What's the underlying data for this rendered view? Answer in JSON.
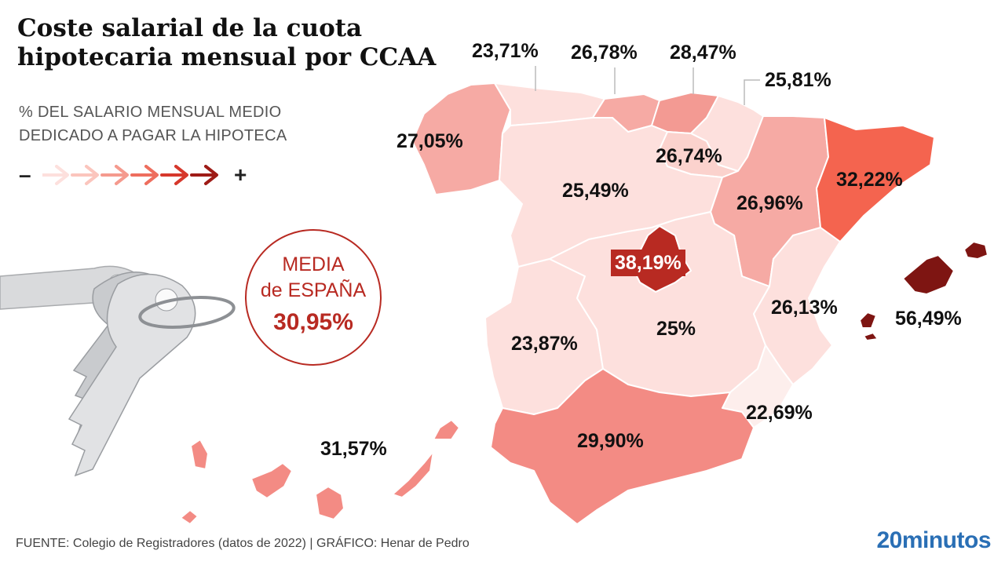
{
  "title": "Coste salarial de la cuota hipotecaria mensual por CCAA",
  "subtitle": "% DEL SALARIO MENSUAL MEDIO DEDICADO A PAGAR LA HIPOTECA",
  "legend": {
    "min_symbol": "–",
    "max_symbol": "+",
    "colors": [
      "#fde0dd",
      "#fbc5bd",
      "#f59a8e",
      "#ee6e5e",
      "#d6382c",
      "#9e1b16"
    ]
  },
  "average": {
    "label_line1": "MEDIA",
    "label_line2": "de ESPAÑA",
    "value": "30,95%"
  },
  "regions": [
    {
      "name": "galicia",
      "value": "27,05%",
      "color": "#f6aaa4"
    },
    {
      "name": "asturias",
      "value": "23,71%",
      "color": "#fde0dd"
    },
    {
      "name": "cantabria",
      "value": "26,78%",
      "color": "#f6aaa4"
    },
    {
      "name": "pais-vasco",
      "value": "28,47%",
      "color": "#f39a93"
    },
    {
      "name": "navarra",
      "value": "25,81%",
      "color": "#fde0dd"
    },
    {
      "name": "la-rioja",
      "value": "26,74%",
      "color": "#fbd2cd"
    },
    {
      "name": "castilla-y-leon",
      "value": "25,49%",
      "color": "#fde0dd"
    },
    {
      "name": "aragon",
      "value": "26,96%",
      "color": "#f6aaa4"
    },
    {
      "name": "cataluna",
      "value": "32,22%",
      "color": "#f4644f"
    },
    {
      "name": "madrid",
      "value": "38,19%",
      "color": "#b82a22"
    },
    {
      "name": "extremadura",
      "value": "23,87%",
      "color": "#fde0dd"
    },
    {
      "name": "castilla-la-mancha",
      "value": "25%",
      "color": "#fde0dd"
    },
    {
      "name": "comunidad-valenciana",
      "value": "26,13%",
      "color": "#fde0dd"
    },
    {
      "name": "baleares",
      "value": "56,49%",
      "color": "#7e1512"
    },
    {
      "name": "murcia",
      "value": "22,69%",
      "color": "#fdeeec"
    },
    {
      "name": "andalucia",
      "value": "29,90%",
      "color": "#f38b84"
    },
    {
      "name": "canarias",
      "value": "31,57%",
      "color": "#f38b84"
    }
  ],
  "footer": "FUENTE: Colegio de Registradores (datos de 2022)  |  GRÁFICO: Henar de Pedro",
  "brand": "20minutos"
}
